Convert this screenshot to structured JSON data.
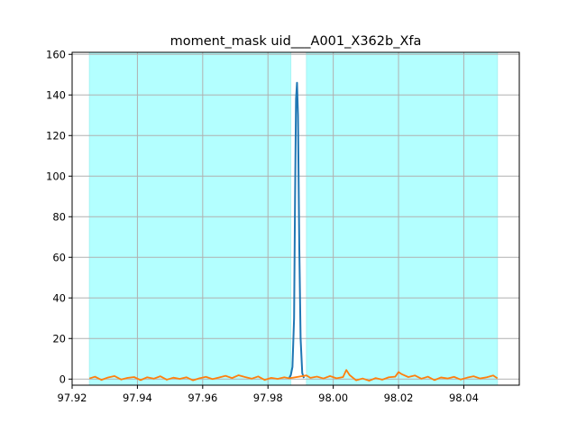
{
  "chart_data": {
    "type": "line",
    "title": "moment_mask uid___A001_X362b_Xfa",
    "xlabel": "",
    "ylabel": "",
    "xlim": [
      97.92,
      98.057
    ],
    "ylim": [
      -3,
      161
    ],
    "grid": true,
    "x_ticks": [
      "97.92",
      "97.94",
      "97.96",
      "97.98",
      "98.00",
      "98.02",
      "98.04"
    ],
    "y_ticks": [
      "0",
      "20",
      "40",
      "60",
      "80",
      "100",
      "120",
      "140",
      "160"
    ],
    "shaded_regions": [
      {
        "x": [
          97.9253,
          97.987
        ],
        "color": "#b3ffff"
      },
      {
        "x": [
          97.9918,
          98.0503
        ],
        "color": "#b3ffff"
      }
    ],
    "series": [
      {
        "color": "#1f77b4",
        "x": [
          97.9865,
          97.987,
          97.9875,
          97.988,
          97.9883,
          97.9886,
          97.9889,
          97.9892,
          97.9896,
          97.99,
          97.9905,
          97.991
        ],
        "y": [
          0.5,
          2.0,
          6.0,
          30.0,
          90.0,
          138.0,
          146.0,
          130.0,
          65.0,
          20.0,
          3.0,
          0.5
        ]
      },
      {
        "color": "#ff7f0e",
        "x": [
          97.9253,
          97.927,
          97.929,
          97.931,
          97.933,
          97.935,
          97.937,
          97.939,
          97.941,
          97.943,
          97.945,
          97.947,
          97.949,
          97.951,
          97.953,
          97.955,
          97.957,
          97.959,
          97.961,
          97.963,
          97.965,
          97.967,
          97.969,
          97.971,
          97.973,
          97.975,
          97.977,
          97.979,
          97.981,
          97.983,
          97.985,
          97.9865,
          97.9918,
          97.993,
          97.995,
          97.997,
          97.999,
          98.001,
          98.003,
          98.004,
          98.005,
          98.007,
          98.009,
          98.011,
          98.013,
          98.015,
          98.017,
          98.019,
          98.02,
          98.021,
          98.023,
          98.025,
          98.027,
          98.029,
          98.031,
          98.033,
          98.035,
          98.037,
          98.039,
          98.041,
          98.043,
          98.045,
          98.047,
          98.049,
          98.0503
        ],
        "y": [
          0.3,
          1.2,
          -0.4,
          0.8,
          1.5,
          -0.2,
          0.6,
          1.0,
          -0.5,
          0.9,
          0.2,
          1.4,
          -0.3,
          0.7,
          0.1,
          0.9,
          -0.6,
          0.4,
          1.1,
          0.0,
          0.8,
          1.6,
          0.5,
          1.9,
          1.0,
          0.2,
          1.3,
          -0.4,
          0.6,
          0.1,
          0.9,
          0.4,
          1.8,
          0.6,
          1.2,
          0.3,
          1.5,
          0.4,
          1.0,
          4.5,
          2.0,
          -0.6,
          0.3,
          -0.8,
          0.5,
          -0.3,
          0.9,
          1.2,
          3.5,
          2.4,
          1.0,
          1.8,
          0.2,
          1.2,
          -0.5,
          0.8,
          0.3,
          1.1,
          -0.2,
          0.7,
          1.4,
          0.3,
          0.9,
          1.8,
          0.4
        ]
      }
    ]
  }
}
